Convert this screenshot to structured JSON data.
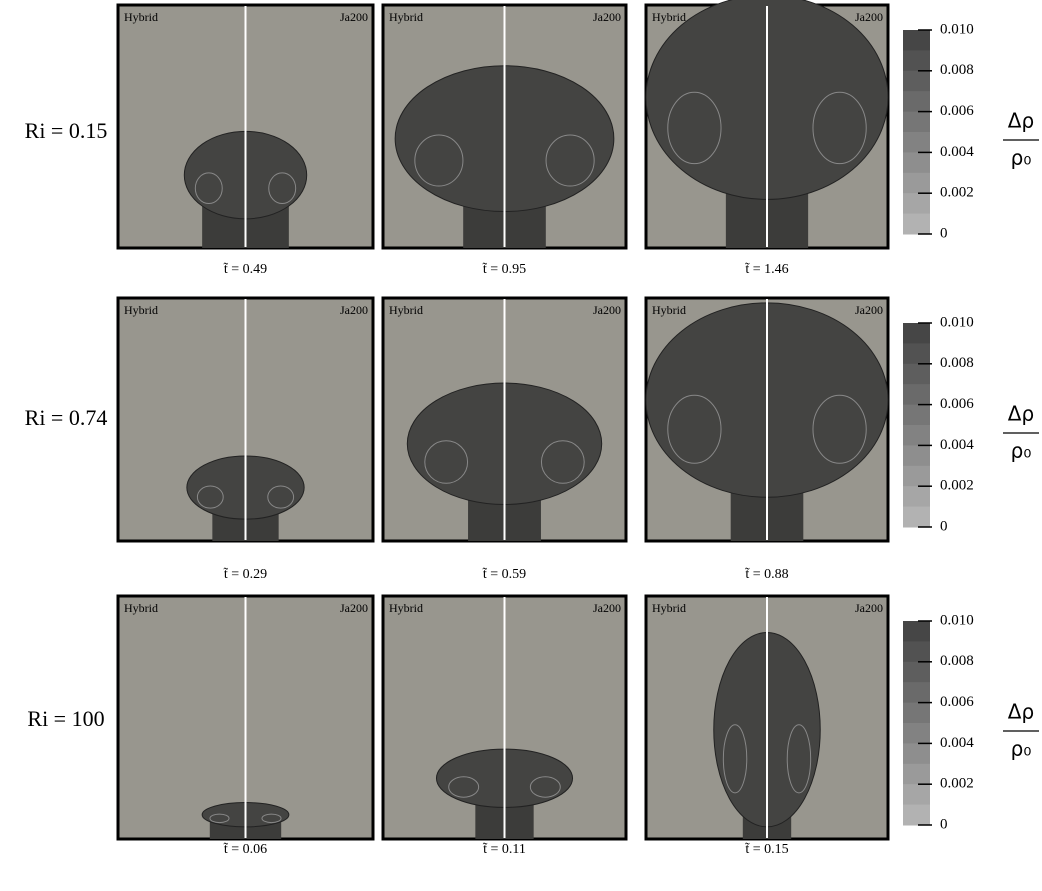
{
  "rows": [
    {
      "label": "Ri = 0.15",
      "panels": [
        {
          "left": "Hybrid",
          "right": "Ja200",
          "time": "t̃ = 0.49"
        },
        {
          "left": "Hybrid",
          "right": "Ja200",
          "time": "t̃ = 0.95"
        },
        {
          "left": "Hybrid",
          "right": "Ja200",
          "time": "t̃ = 1.46"
        }
      ],
      "colorbar": {
        "ticks": [
          "0.010",
          "0.008",
          "0.006",
          "0.004",
          "0.002",
          "0"
        ],
        "numerator": "Δρ",
        "denominator": "ρ₀"
      }
    },
    {
      "label": "Ri = 0.74",
      "panels": [
        {
          "left": "Hybrid",
          "right": "Ja200",
          "time": "t̃ = 0.29"
        },
        {
          "left": "Hybrid",
          "right": "Ja200",
          "time": "t̃ = 0.59"
        },
        {
          "left": "Hybrid",
          "right": "Ja200",
          "time": "t̃ = 0.88"
        }
      ],
      "colorbar": {
        "ticks": [
          "0.010",
          "0.008",
          "0.006",
          "0.004",
          "0.002",
          "0"
        ],
        "numerator": "Δρ",
        "denominator": "ρ₀"
      }
    },
    {
      "label": "Ri = 100",
      "panels": [
        {
          "left": "Hybrid",
          "right": "Ja200",
          "time": "t̃ = 0.06"
        },
        {
          "left": "Hybrid",
          "right": "Ja200",
          "time": "t̃ = 0.11"
        },
        {
          "left": "Hybrid",
          "right": "Ja200",
          "time": "t̃ = 0.15"
        }
      ],
      "colorbar": {
        "ticks": [
          "0.010",
          "0.008",
          "0.006",
          "0.004",
          "0.002",
          "0"
        ],
        "numerator": "Δρ",
        "denominator": "ρ₀"
      }
    }
  ]
}
